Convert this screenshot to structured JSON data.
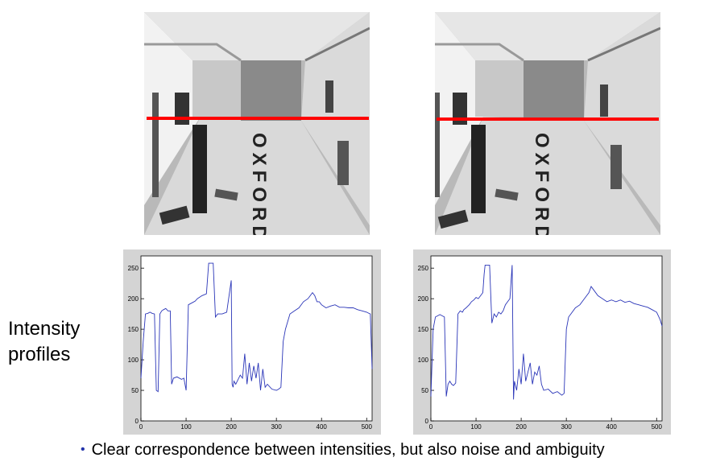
{
  "images": {
    "left": {
      "floor_lettering": "OXFORD"
    },
    "right": {
      "floor_lettering": "OXFORD"
    },
    "scanline_color": "#ff0000"
  },
  "side_label": {
    "line1": "Intensity",
    "line2": "profiles"
  },
  "caption": {
    "bullet": "•",
    "text": "Clear correspondence between intensities, but also noise and ambiguity"
  },
  "chart_data": [
    {
      "type": "line",
      "title": "",
      "xlabel": "",
      "ylabel": "",
      "xlim": [
        0,
        512
      ],
      "ylim": [
        0,
        270
      ],
      "xticks": [
        0,
        100,
        200,
        300,
        400,
        500
      ],
      "yticks": [
        0,
        50,
        100,
        150,
        200,
        250
      ],
      "grid": false,
      "line_color": "#2a35b8",
      "x": [
        0,
        5,
        10,
        15,
        20,
        25,
        30,
        34,
        38,
        42,
        46,
        50,
        55,
        60,
        65,
        68,
        72,
        80,
        90,
        95,
        100,
        105,
        110,
        115,
        120,
        125,
        135,
        145,
        150,
        155,
        160,
        165,
        170,
        180,
        190,
        200,
        202,
        204,
        206,
        210,
        220,
        225,
        230,
        235,
        240,
        245,
        250,
        255,
        260,
        265,
        270,
        275,
        280,
        290,
        300,
        305,
        310,
        315,
        320,
        330,
        340,
        350,
        360,
        370,
        375,
        380,
        385,
        390,
        395,
        400,
        410,
        420,
        430,
        440,
        450,
        460,
        470,
        480,
        490,
        500,
        505,
        508,
        512
      ],
      "values": [
        70,
        130,
        175,
        176,
        178,
        176,
        175,
        50,
        48,
        175,
        180,
        182,
        184,
        180,
        180,
        60,
        70,
        72,
        68,
        70,
        50,
        190,
        192,
        194,
        196,
        200,
        205,
        208,
        258,
        258,
        258,
        170,
        175,
        175,
        178,
        230,
        60,
        55,
        65,
        60,
        75,
        70,
        110,
        60,
        95,
        65,
        90,
        70,
        95,
        50,
        85,
        55,
        60,
        52,
        50,
        52,
        55,
        130,
        150,
        175,
        180,
        185,
        195,
        200,
        205,
        210,
        205,
        195,
        195,
        190,
        185,
        188,
        190,
        186,
        186,
        185,
        185,
        182,
        180,
        178,
        176,
        175,
        85
      ]
    },
    {
      "type": "line",
      "title": "",
      "xlabel": "",
      "ylabel": "",
      "xlim": [
        0,
        512
      ],
      "ylim": [
        0,
        270
      ],
      "xticks": [
        0,
        100,
        200,
        300,
        400,
        500
      ],
      "yticks": [
        0,
        50,
        100,
        150,
        200,
        250
      ],
      "grid": false,
      "line_color": "#2a35b8",
      "x": [
        0,
        5,
        10,
        15,
        20,
        25,
        30,
        34,
        38,
        42,
        46,
        50,
        55,
        60,
        65,
        70,
        73,
        78,
        85,
        90,
        95,
        100,
        105,
        110,
        115,
        118,
        120,
        125,
        130,
        135,
        140,
        145,
        150,
        155,
        160,
        165,
        170,
        175,
        180,
        183,
        185,
        190,
        195,
        200,
        205,
        210,
        215,
        220,
        225,
        230,
        235,
        240,
        245,
        250,
        260,
        270,
        280,
        290,
        295,
        300,
        305,
        310,
        320,
        330,
        340,
        350,
        355,
        360,
        370,
        380,
        390,
        400,
        410,
        420,
        430,
        440,
        450,
        460,
        470,
        480,
        490,
        500,
        505,
        508,
        512
      ],
      "values": [
        40,
        150,
        170,
        172,
        174,
        172,
        170,
        40,
        60,
        65,
        60,
        58,
        62,
        175,
        180,
        178,
        182,
        185,
        190,
        195,
        198,
        202,
        200,
        205,
        210,
        240,
        255,
        255,
        255,
        160,
        175,
        170,
        178,
        175,
        180,
        190,
        195,
        200,
        255,
        35,
        65,
        50,
        85,
        60,
        110,
        65,
        80,
        95,
        60,
        80,
        75,
        90,
        60,
        50,
        52,
        45,
        48,
        42,
        45,
        150,
        170,
        175,
        185,
        190,
        200,
        210,
        220,
        215,
        205,
        200,
        195,
        198,
        195,
        198,
        194,
        196,
        192,
        190,
        188,
        186,
        182,
        178,
        170,
        165,
        155
      ]
    }
  ]
}
